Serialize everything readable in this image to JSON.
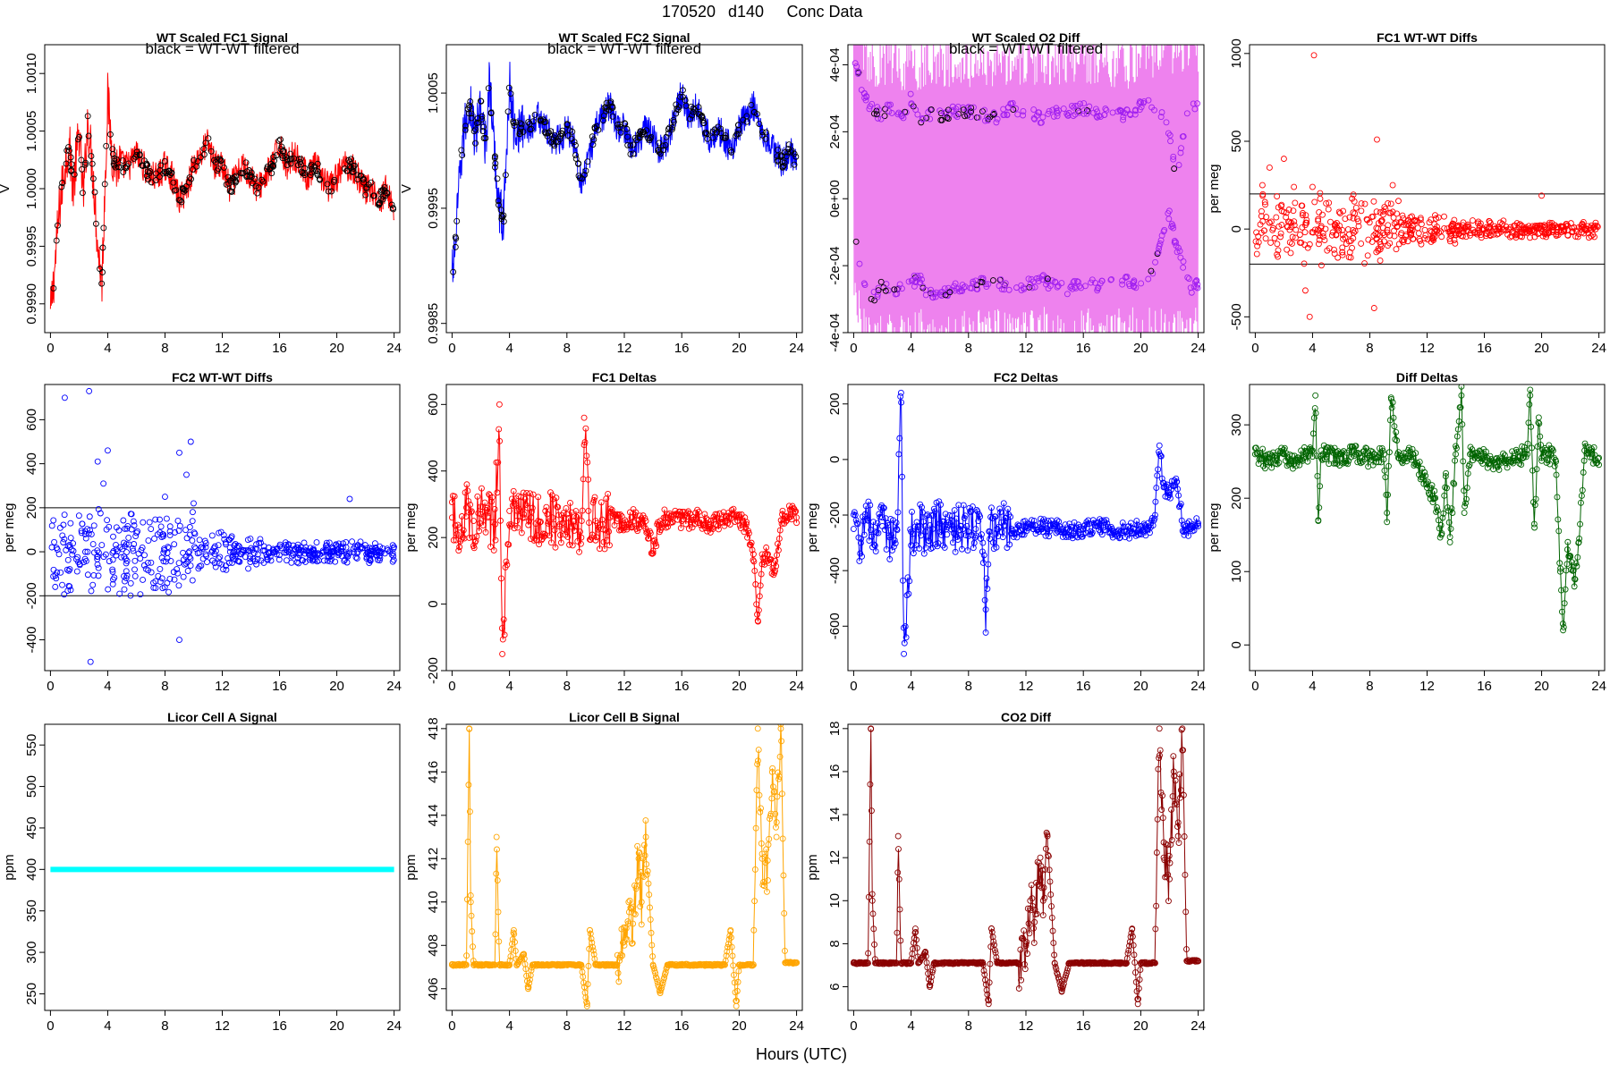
{
  "page": {
    "title_date": "170520",
    "title_day": "d140",
    "title_text": "Conc Data",
    "x_label": "Hours (UTC)"
  },
  "chart_data": [
    {
      "id": "fc1",
      "type": "scatter",
      "title": "WT Scaled FC1 Signal",
      "note": "black = WT-WT filtered",
      "ylabel": "V",
      "xlim": [
        -0.4,
        24.4
      ],
      "ylim": [
        0.99875,
        1.00125
      ],
      "xticks": [
        0,
        4,
        8,
        12,
        16,
        20,
        24
      ],
      "yticks": [
        0.999,
        0.9995,
        1.0,
        1.0005,
        1.001
      ],
      "ytick_labels": [
        "0.9990",
        "0.9995",
        "1.0000",
        "1.0005",
        "1.0010"
      ],
      "color": "#ff0000",
      "marker_color": "#000000",
      "x": [
        0,
        0.3,
        0.6,
        1.0,
        1.3,
        1.6,
        2.0,
        2.3,
        2.6,
        3.0,
        3.3,
        3.6,
        4.0,
        4.3,
        4.6,
        5.0,
        5.5,
        6.0,
        6.5,
        7.0,
        7.5,
        8.0,
        8.5,
        9.0,
        9.5,
        10.0,
        10.5,
        11.0,
        11.5,
        12.0,
        12.5,
        13.0,
        13.5,
        14.0,
        14.5,
        15.0,
        15.5,
        16.0,
        16.5,
        17.0,
        17.5,
        18.0,
        18.5,
        19.0,
        19.5,
        20.0,
        20.5,
        21.0,
        21.5,
        22.0,
        22.5,
        23.0,
        23.5,
        24.0
      ],
      "y": [
        0.9989,
        0.9993,
        0.9998,
        1.0002,
        1.0004,
        1.0,
        1.0005,
        0.9999,
        1.0006,
        1.0001,
        0.9995,
        0.9992,
        1.0008,
        1.0003,
        1.0002,
        1.0002,
        1.0002,
        1.0003,
        1.0002,
        1.0001,
        1.0001,
        1.0002,
        1.0001,
        0.9999,
        1.0,
        1.0002,
        1.0003,
        1.0004,
        1.0002,
        1.0002,
        1.0,
        1.0001,
        1.0002,
        1.0001,
        1.0,
        1.0001,
        1.0002,
        1.0004,
        1.0002,
        1.0003,
        1.0002,
        1.0001,
        1.0002,
        1.0001,
        1.0,
        1.0001,
        1.0002,
        1.0002,
        1.0001,
        1.0,
        1.0,
        0.9999,
        1.0,
        0.9998
      ]
    },
    {
      "id": "fc2",
      "type": "scatter",
      "title": "WT Scaled FC2 Signal",
      "note": "black = WT-WT filtered",
      "ylabel": "V",
      "xlim": [
        -0.4,
        24.4
      ],
      "ylim": [
        0.99842,
        1.00092
      ],
      "xticks": [
        0,
        4,
        8,
        12,
        16,
        20,
        24
      ],
      "yticks": [
        0.9985,
        0.9995,
        1.0005
      ],
      "ytick_labels": [
        "0.9985",
        "0.9995",
        "1.0005"
      ],
      "color": "#0000ff",
      "marker_color": "#000000",
      "x": [
        0,
        0.3,
        0.6,
        1.0,
        1.3,
        1.6,
        2.0,
        2.3,
        2.6,
        3.0,
        3.3,
        3.6,
        4.0,
        4.3,
        4.6,
        5.0,
        5.5,
        6.0,
        6.5,
        7.0,
        7.5,
        8.0,
        8.5,
        9.0,
        9.5,
        10.0,
        10.5,
        11.0,
        11.5,
        12.0,
        12.5,
        13.0,
        13.5,
        14.0,
        14.5,
        15.0,
        15.5,
        16.0,
        16.5,
        17.0,
        17.5,
        18.0,
        18.5,
        19.0,
        19.5,
        20.0,
        20.5,
        21.0,
        21.5,
        22.0,
        22.5,
        23.0,
        23.5,
        24.0
      ],
      "y": [
        0.9989,
        0.9993,
        0.9999,
        1.0003,
        1.0004,
        1.0001,
        1.0004,
        1.0,
        1.0006,
        0.9999,
        0.9995,
        0.9994,
        1.0006,
        1.0002,
        1.0002,
        1.0002,
        1.0002,
        1.0003,
        1.0002,
        1.0001,
        1.0001,
        1.0002,
        1.0001,
        0.9997,
        0.9999,
        1.0002,
        1.0003,
        1.0004,
        1.0002,
        1.0002,
        1.0,
        1.0001,
        1.0002,
        1.0001,
        1.0,
        1.0001,
        1.0003,
        1.0005,
        1.0003,
        1.0004,
        1.0002,
        1.0001,
        1.0002,
        1.0001,
        1.0,
        1.0002,
        1.0003,
        1.0004,
        1.0002,
        1.0001,
        1.0,
        0.9999,
        1.0,
        0.9999
      ]
    },
    {
      "id": "o2diff",
      "type": "scatter",
      "title": "WT Scaled O2 Diff",
      "note": "black = WT-WT filtered",
      "ylabel": "",
      "xlim": [
        -0.4,
        24.4
      ],
      "ylim": [
        -0.0004,
        0.00046
      ],
      "xticks": [
        0,
        4,
        8,
        12,
        16,
        20,
        24
      ],
      "yticks": [
        -0.0004,
        -0.0002,
        0,
        0.0002,
        0.0004
      ],
      "ytick_labels": [
        "-4e-04",
        "-2e-04",
        "0e+00",
        "2e-04",
        "4e-04"
      ],
      "color": "#ee82ee",
      "marker_color": "#a020f0",
      "x": [
        0,
        0.5,
        1.0,
        1.5,
        2.0,
        2.5,
        3.0,
        3.5,
        4.0,
        4.5,
        5.0,
        6.0,
        7.0,
        8.0,
        9.0,
        10.0,
        11.0,
        12.0,
        13.0,
        14.0,
        15.0,
        16.0,
        17.0,
        18.0,
        19.0,
        20.0,
        20.5,
        21.0,
        21.5,
        22.0,
        22.5,
        23.0,
        23.5,
        24.0
      ],
      "y_upper": [
        0.00042,
        0.00034,
        0.00028,
        0.00026,
        0.00025,
        0.00027,
        0.00026,
        0.00024,
        0.0003,
        0.00024,
        0.00025,
        0.00025,
        0.00026,
        0.00026,
        0.00025,
        0.00024,
        0.00027,
        0.00026,
        0.00024,
        0.00026,
        0.00026,
        0.00027,
        0.00025,
        0.00026,
        0.00025,
        0.00028,
        0.00028,
        0.00026,
        0.00025,
        0.0002,
        5e-05,
        0.0002,
        0.00028,
        0.00028
      ],
      "y_lower": [
        -8e-05,
        -0.00022,
        -0.00028,
        -0.00029,
        -0.00026,
        -0.00026,
        -0.00028,
        -0.00025,
        -0.00026,
        -0.00023,
        -0.00028,
        -0.00029,
        -0.00027,
        -0.00026,
        -0.00025,
        -0.00025,
        -0.00026,
        -0.00026,
        -0.00024,
        -0.00026,
        -0.00027,
        -0.00025,
        -0.00026,
        -0.00025,
        -0.00025,
        -0.00025,
        -0.00025,
        -0.0002,
        -0.0001,
        -5e-05,
        -0.00015,
        -0.0002,
        -0.00027,
        -0.00025
      ]
    },
    {
      "id": "fc1diffs",
      "type": "scatter",
      "title": "FC1 WT-WT Diffs",
      "ylabel": "per meg",
      "xlim": [
        -0.4,
        24.4
      ],
      "ylim": [
        -590,
        1050
      ],
      "xticks": [
        0,
        4,
        8,
        12,
        16,
        20,
        24
      ],
      "yticks": [
        -500,
        0,
        500,
        1000
      ],
      "ytick_labels": [
        "-500",
        "0",
        "500",
        "1000"
      ],
      "hlines": [
        200,
        -200
      ],
      "color": "#ff0000",
      "outliers": {
        "x": [
          0.5,
          1.0,
          2.0,
          2.7,
          3.5,
          3.8,
          4.0,
          4.1,
          8.5,
          8.3,
          9.6,
          10.0,
          20.0
        ],
        "y": [
          250,
          350,
          400,
          240,
          -350,
          -500,
          240,
          990,
          510,
          -450,
          250,
          160,
          190
        ]
      }
    },
    {
      "id": "fc2diffs",
      "type": "scatter",
      "title": "FC2 WT-WT Diffs",
      "ylabel": "per meg",
      "xlim": [
        -0.4,
        24.4
      ],
      "ylim": [
        -540,
        760
      ],
      "xticks": [
        0,
        4,
        8,
        12,
        16,
        20,
        24
      ],
      "yticks": [
        -400,
        -200,
        0,
        200,
        400,
        600
      ],
      "ytick_labels": [
        "-400",
        "-200",
        "0",
        "200",
        "400",
        "600"
      ],
      "hlines": [
        200,
        -200
      ],
      "color": "#0000ff",
      "outliers": {
        "x": [
          1.0,
          2.7,
          3.3,
          3.7,
          4.0,
          8.0,
          9.0,
          9.5,
          9.8,
          2.8,
          9.0,
          10.0,
          20.9
        ],
        "y": [
          700,
          730,
          410,
          310,
          460,
          250,
          450,
          350,
          500,
          -500,
          -400,
          220,
          240
        ]
      }
    },
    {
      "id": "fc1deltas",
      "type": "line",
      "title": "FC1 Deltas",
      "ylabel": "per meg",
      "xlim": [
        -0.4,
        24.4
      ],
      "ylim": [
        -200,
        660
      ],
      "xticks": [
        0,
        4,
        8,
        12,
        16,
        20,
        24
      ],
      "yticks": [
        -200,
        0,
        200,
        400,
        600
      ],
      "ytick_labels": [
        "-200",
        "0",
        "200",
        "400",
        "600"
      ],
      "color": "#ff0000",
      "x": [
        0,
        0.5,
        1.0,
        1.5,
        2.0,
        2.5,
        3.0,
        3.3,
        3.5,
        4.0,
        4.5,
        5.0,
        5.5,
        6.0,
        6.5,
        7.0,
        7.5,
        8.0,
        8.5,
        9.0,
        9.2,
        9.5,
        10.0,
        10.5,
        11.0,
        11.5,
        12.0,
        12.5,
        13.0,
        13.5,
        14.0,
        14.5,
        15.0,
        16.0,
        17.0,
        18.0,
        19.0,
        19.5,
        20.0,
        20.5,
        21.0,
        21.3,
        21.6,
        22.0,
        22.5,
        23.0,
        23.3,
        23.6,
        24.0
      ],
      "y": [
        260,
        230,
        290,
        250,
        270,
        260,
        240,
        600,
        -150,
        280,
        250,
        270,
        260,
        250,
        280,
        260,
        240,
        270,
        250,
        200,
        560,
        280,
        250,
        240,
        260,
        250,
        230,
        260,
        240,
        250,
        160,
        250,
        260,
        250,
        260,
        240,
        250,
        270,
        260,
        240,
        150,
        -50,
        120,
        150,
        100,
        270,
        260,
        270,
        260
      ]
    },
    {
      "id": "fc2deltas",
      "type": "line",
      "title": "FC2 Deltas",
      "ylabel": "per meg",
      "xlim": [
        -0.4,
        24.4
      ],
      "ylim": [
        -760,
        270
      ],
      "xticks": [
        0,
        4,
        8,
        12,
        16,
        20,
        24
      ],
      "yticks": [
        -600,
        -400,
        -200,
        0,
        200
      ],
      "ytick_labels": [
        "-600",
        "-400",
        "-200",
        "0",
        "200"
      ],
      "color": "#0000ff",
      "x": [
        0,
        0.5,
        1.0,
        1.5,
        2.0,
        2.5,
        3.0,
        3.3,
        3.5,
        4.0,
        4.5,
        5.0,
        5.5,
        6.0,
        6.5,
        7.0,
        7.5,
        8.0,
        8.5,
        9.0,
        9.2,
        9.5,
        10.0,
        10.5,
        11.0,
        11.5,
        12.0,
        12.5,
        13.0,
        13.5,
        14.0,
        14.5,
        15.0,
        16.0,
        17.0,
        18.0,
        19.0,
        19.5,
        20.0,
        20.5,
        21.0,
        21.3,
        21.6,
        22.0,
        22.5,
        23.0,
        23.3,
        23.6,
        24.0
      ],
      "y": [
        -250,
        -300,
        -220,
        -260,
        -240,
        -280,
        -250,
        240,
        -700,
        -260,
        -240,
        -260,
        -250,
        -230,
        -270,
        -250,
        -240,
        -260,
        -250,
        -300,
        -540,
        -260,
        -250,
        -240,
        -250,
        -260,
        -240,
        -250,
        -230,
        -250,
        -240,
        -250,
        -260,
        -250,
        -240,
        -250,
        -260,
        -250,
        -240,
        -250,
        -200,
        50,
        -100,
        -120,
        -80,
        -260,
        -250,
        -240,
        -240
      ]
    },
    {
      "id": "diffdeltas",
      "type": "line",
      "title": "Diff Deltas",
      "ylabel": "per meg",
      "xlim": [
        -0.4,
        24.4
      ],
      "ylim": [
        -35,
        355
      ],
      "xticks": [
        0,
        4,
        8,
        12,
        16,
        20,
        24
      ],
      "yticks": [
        0,
        100,
        200,
        300
      ],
      "ytick_labels": [
        "0",
        "100",
        "200",
        "300"
      ],
      "color": "#006400",
      "x": [
        0,
        0.5,
        1.0,
        1.5,
        2.0,
        2.5,
        3.0,
        3.5,
        4.0,
        4.2,
        4.4,
        4.6,
        5.0,
        6.0,
        7.0,
        8.0,
        9.0,
        9.2,
        9.5,
        10.0,
        11.0,
        12.0,
        12.5,
        13.0,
        13.3,
        13.6,
        14.0,
        14.4,
        14.6,
        15.0,
        16.0,
        17.0,
        18.0,
        19.0,
        19.2,
        19.5,
        19.8,
        20.0,
        20.5,
        21.0,
        21.3,
        21.5,
        21.8,
        22.0,
        22.3,
        22.6,
        23.0,
        23.5,
        24.0
      ],
      "y": [
        260,
        255,
        250,
        255,
        260,
        250,
        255,
        260,
        265,
        340,
        170,
        265,
        260,
        255,
        260,
        255,
        260,
        180,
        335,
        255,
        260,
        220,
        200,
        150,
        230,
        140,
        260,
        340,
        180,
        260,
        255,
        250,
        255,
        260,
        340,
        160,
        310,
        255,
        260,
        250,
        100,
        20,
        130,
        120,
        90,
        140,
        265,
        260,
        255
      ]
    },
    {
      "id": "licorA",
      "type": "line",
      "title": "Licor Cell A Signal",
      "ylabel": "ppm",
      "xlim": [
        -0.4,
        24.4
      ],
      "ylim": [
        230,
        575
      ],
      "xticks": [
        0,
        4,
        8,
        12,
        16,
        20,
        24
      ],
      "yticks": [
        250,
        300,
        350,
        400,
        450,
        500,
        550
      ],
      "ytick_labels": [
        "250",
        "300",
        "350",
        "400",
        "450",
        "500",
        "550"
      ],
      "color": "#00ffff",
      "x": [
        0,
        24
      ],
      "y": [
        400,
        400
      ]
    },
    {
      "id": "licorB",
      "type": "line",
      "title": "Licor Cell B Signal",
      "ylabel": "ppm",
      "xlim": [
        -0.4,
        24.4
      ],
      "ylim": [
        405.0,
        418.2
      ],
      "xticks": [
        0,
        4,
        8,
        12,
        16,
        20,
        24
      ],
      "yticks": [
        406,
        408,
        410,
        412,
        414,
        416,
        418
      ],
      "ytick_labels": [
        "406",
        "408",
        "410",
        "412",
        "414",
        "416",
        "418"
      ],
      "color": "#ffa500",
      "x": [
        0,
        1.0,
        1.2,
        1.3,
        1.5,
        2.5,
        3.0,
        3.1,
        3.3,
        4.0,
        4.3,
        4.5,
        5.0,
        5.3,
        5.6,
        6.0,
        8.0,
        9.0,
        9.4,
        9.6,
        10.0,
        11.5,
        12.0,
        12.3,
        12.6,
        13.0,
        13.2,
        13.5,
        14.0,
        14.5,
        15.0,
        17.0,
        19.0,
        19.4,
        19.8,
        20.0,
        21.0,
        21.3,
        21.6,
        22.0,
        22.3,
        22.6,
        22.9,
        23.2,
        24.0
      ],
      "y": [
        407.1,
        407.1,
        418,
        410,
        407.1,
        407.1,
        407.1,
        413,
        407.1,
        407.1,
        408.7,
        407.1,
        407.6,
        406.0,
        407.1,
        407.1,
        407.1,
        407.1,
        405.2,
        408.7,
        407.1,
        407.1,
        408,
        410,
        409,
        412,
        410,
        413,
        407.1,
        405.8,
        407.1,
        407.1,
        407.1,
        408.7,
        405.2,
        407.1,
        407.1,
        418,
        412,
        411,
        416,
        413,
        418,
        407.2,
        407.2
      ]
    },
    {
      "id": "co2diff",
      "type": "line",
      "title": "CO2 Diff",
      "ylabel": "ppm",
      "xlim": [
        -0.4,
        24.4
      ],
      "ylim": [
        4.9,
        18.2
      ],
      "xticks": [
        0,
        4,
        8,
        12,
        16,
        20,
        24
      ],
      "yticks": [
        6,
        8,
        10,
        12,
        14,
        16,
        18
      ],
      "ytick_labels": [
        "6",
        "8",
        "10",
        "12",
        "14",
        "16",
        "18"
      ],
      "color": "#8b0000",
      "x": [
        0,
        1.0,
        1.2,
        1.3,
        1.5,
        2.5,
        3.0,
        3.1,
        3.3,
        4.0,
        4.3,
        4.5,
        5.0,
        5.3,
        5.6,
        6.0,
        8.0,
        9.0,
        9.4,
        9.6,
        10.0,
        11.5,
        12.0,
        12.3,
        12.6,
        13.0,
        13.2,
        13.5,
        14.0,
        14.5,
        15.0,
        17.0,
        19.0,
        19.4,
        19.8,
        20.0,
        21.0,
        21.3,
        21.6,
        22.0,
        22.3,
        22.6,
        22.9,
        23.2,
        24.0
      ],
      "y": [
        7.1,
        7.1,
        18,
        10,
        7.1,
        7.1,
        7.1,
        13,
        7.1,
        7.1,
        8.7,
        7.1,
        7.6,
        6.0,
        7.1,
        7.1,
        7.1,
        7.1,
        5.2,
        8.7,
        7.1,
        7.1,
        8,
        10,
        9,
        12,
        10,
        13,
        7.1,
        5.8,
        7.1,
        7.1,
        7.1,
        8.7,
        5.2,
        7.1,
        7.1,
        18,
        12,
        11,
        16,
        13,
        18,
        7.2,
        7.2
      ]
    }
  ]
}
